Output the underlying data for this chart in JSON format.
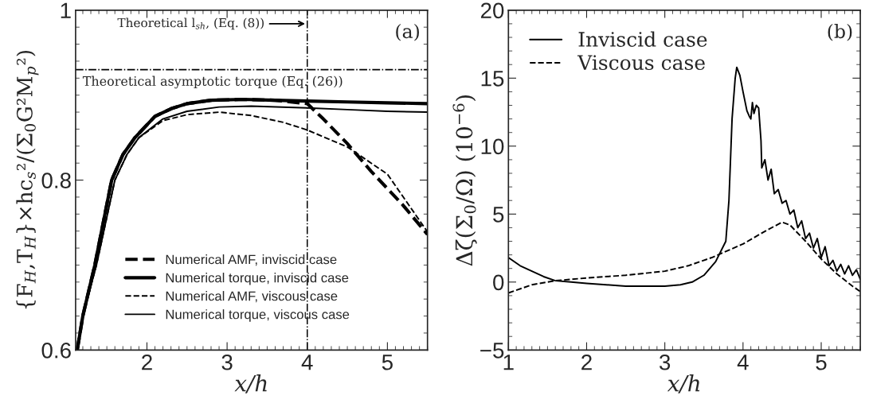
{
  "chart_data": [
    {
      "type": "line",
      "xlabel": "x/h",
      "ylabel": "{F$_{H}$,T$_{H}$}×hc$_{s}$²/(Σ$_{0}$G²M$_{p}$²)",
      "xlim": [
        1.11,
        5.5
      ],
      "xticks": [
        2,
        3,
        4,
        5
      ],
      "ylim": [
        0.6,
        1
      ],
      "yticks": [
        0.6,
        0.8,
        1
      ],
      "legend": "bottom",
      "grid": false,
      "marker": "none",
      "series": [
        {
          "name": "Numerical AMF, inviscid case",
          "color": "#000000",
          "line_style": "dashed",
          "x": [
            1.13,
            1.2,
            1.35,
            1.56,
            1.7,
            1.85,
            2.1,
            2.3,
            2.5,
            2.8,
            3.2,
            3.6,
            4.0,
            4.2,
            4.5,
            4.8,
            5.0,
            5.19,
            5.5
          ],
          "values": [
            0.6,
            0.64,
            0.7,
            0.8,
            0.83,
            0.85,
            0.875,
            0.884,
            0.89,
            0.894,
            0.895,
            0.894,
            0.89,
            0.872,
            0.843,
            0.81,
            0.79,
            0.771,
            0.736
          ]
        },
        {
          "name": "Numerical torque, inviscid case",
          "color": "#000000",
          "line_style": "solid",
          "x": [
            1.13,
            1.2,
            1.35,
            1.56,
            1.7,
            1.85,
            2.1,
            2.3,
            2.5,
            2.8,
            3.2,
            3.6,
            4.0,
            4.5,
            5.0,
            5.5
          ],
          "values": [
            0.6,
            0.64,
            0.7,
            0.8,
            0.83,
            0.85,
            0.875,
            0.884,
            0.89,
            0.894,
            0.895,
            0.894,
            0.893,
            0.892,
            0.891,
            0.89
          ]
        },
        {
          "name": "Numerical AMF, viscous case",
          "color": "#000000",
          "line_style": "dashed",
          "x": [
            1.13,
            1.2,
            1.37,
            1.6,
            1.75,
            1.9,
            2.2,
            2.5,
            2.9,
            3.3,
            3.7,
            4.0,
            4.5,
            5.0,
            5.5
          ],
          "values": [
            0.6,
            0.64,
            0.7,
            0.8,
            0.83,
            0.85,
            0.87,
            0.877,
            0.88,
            0.876,
            0.868,
            0.859,
            0.839,
            0.807,
            0.739
          ]
        },
        {
          "name": "Numerical torque, viscous case",
          "color": "#000000",
          "line_style": "solid",
          "x": [
            1.13,
            1.2,
            1.37,
            1.6,
            1.75,
            1.9,
            2.2,
            2.5,
            2.9,
            3.3,
            4.0,
            4.5,
            5.0,
            5.5
          ],
          "values": [
            0.6,
            0.64,
            0.7,
            0.8,
            0.83,
            0.85,
            0.872,
            0.881,
            0.886,
            0.887,
            0.885,
            0.883,
            0.881,
            0.88
          ]
        }
      ],
      "ref_lines": [
        {
          "axis": "x",
          "value": 4,
          "label": "Theoretical l$_{sh}$, (Eq. (8))",
          "color": "#000000",
          "line_style": "dashdot"
        },
        {
          "axis": "y",
          "value": 0.93,
          "label": "Theoretical asymptotic torque (Eq. (26))",
          "color": "#000000",
          "line_style": "dashdot"
        }
      ],
      "annotations": [
        "(a)"
      ]
    },
    {
      "type": "line",
      "xlabel": "x/h",
      "ylabel": "Δζ(Σ$_{0}$/Ω) (10$^{−6}$)",
      "xlim": [
        1,
        5.5
      ],
      "xticks": [
        1,
        2,
        3,
        4,
        5
      ],
      "ylim": [
        -5,
        20
      ],
      "yticks": [
        {
          "value": -5,
          "label": "−5"
        },
        0,
        5,
        10,
        15,
        20
      ],
      "legend": "top left",
      "grid": false,
      "marker": "none",
      "series": [
        {
          "name": "Inviscid case",
          "color": "#000000",
          "line_style": "solid",
          "x": [
            1,
            1.15,
            1.3,
            1.45,
            1.6,
            1.8,
            2,
            2.25,
            2.5,
            2.75,
            3,
            3.2,
            3.35,
            3.5,
            3.65,
            3.78,
            3.8,
            3.82,
            3.86,
            3.9,
            3.92,
            3.96,
            4.0,
            4.05,
            4.08,
            4.1,
            4.12,
            4.14,
            4.17,
            4.2,
            4.23,
            4.24,
            4.28,
            4.32,
            4.36,
            4.4,
            4.45,
            4.5,
            4.55,
            4.6,
            4.65,
            4.7,
            4.75,
            4.8,
            4.85,
            4.9,
            4.95,
            5.0,
            5.05,
            5.1,
            5.15,
            5.2,
            5.25,
            5.3,
            5.35,
            5.4,
            5.45,
            5.5
          ],
          "values": [
            1.8,
            1.2,
            0.8,
            0.4,
            0.1,
            0,
            -0.1,
            -0.2,
            -0.3,
            -0.3,
            -0.3,
            -0.2,
            0,
            0.5,
            1.5,
            3,
            4.5,
            6,
            12,
            15,
            15.8,
            15.2,
            14,
            12.6,
            12.2,
            12.0,
            13.2,
            12.4,
            13.0,
            12.8,
            10.4,
            8.4,
            9.0,
            7.5,
            8.3,
            6.5,
            6.8,
            5.8,
            6.0,
            5.0,
            5.3,
            4.0,
            4.5,
            3.2,
            3.6,
            2.5,
            3.2,
            1.8,
            2.6,
            1.2,
            1.6,
            0.8,
            1.3,
            0.6,
            1.2,
            0.5,
            0.9,
            0.2
          ]
        },
        {
          "name": "Viscous case",
          "color": "#000000",
          "line_style": "dashed",
          "x": [
            1,
            1.3,
            1.6,
            2,
            2.5,
            3,
            3.3,
            3.6,
            4,
            4.3,
            4.5,
            4.6,
            4.8,
            5,
            5.2,
            5.4,
            5.5
          ],
          "values": [
            -0.8,
            -0.2,
            0.1,
            0.3,
            0.5,
            0.8,
            1.2,
            1.8,
            2.8,
            3.8,
            4.4,
            4.2,
            3,
            1.7,
            0.6,
            -0.3,
            -0.7
          ]
        }
      ],
      "annotations": [
        "(b)"
      ]
    }
  ]
}
